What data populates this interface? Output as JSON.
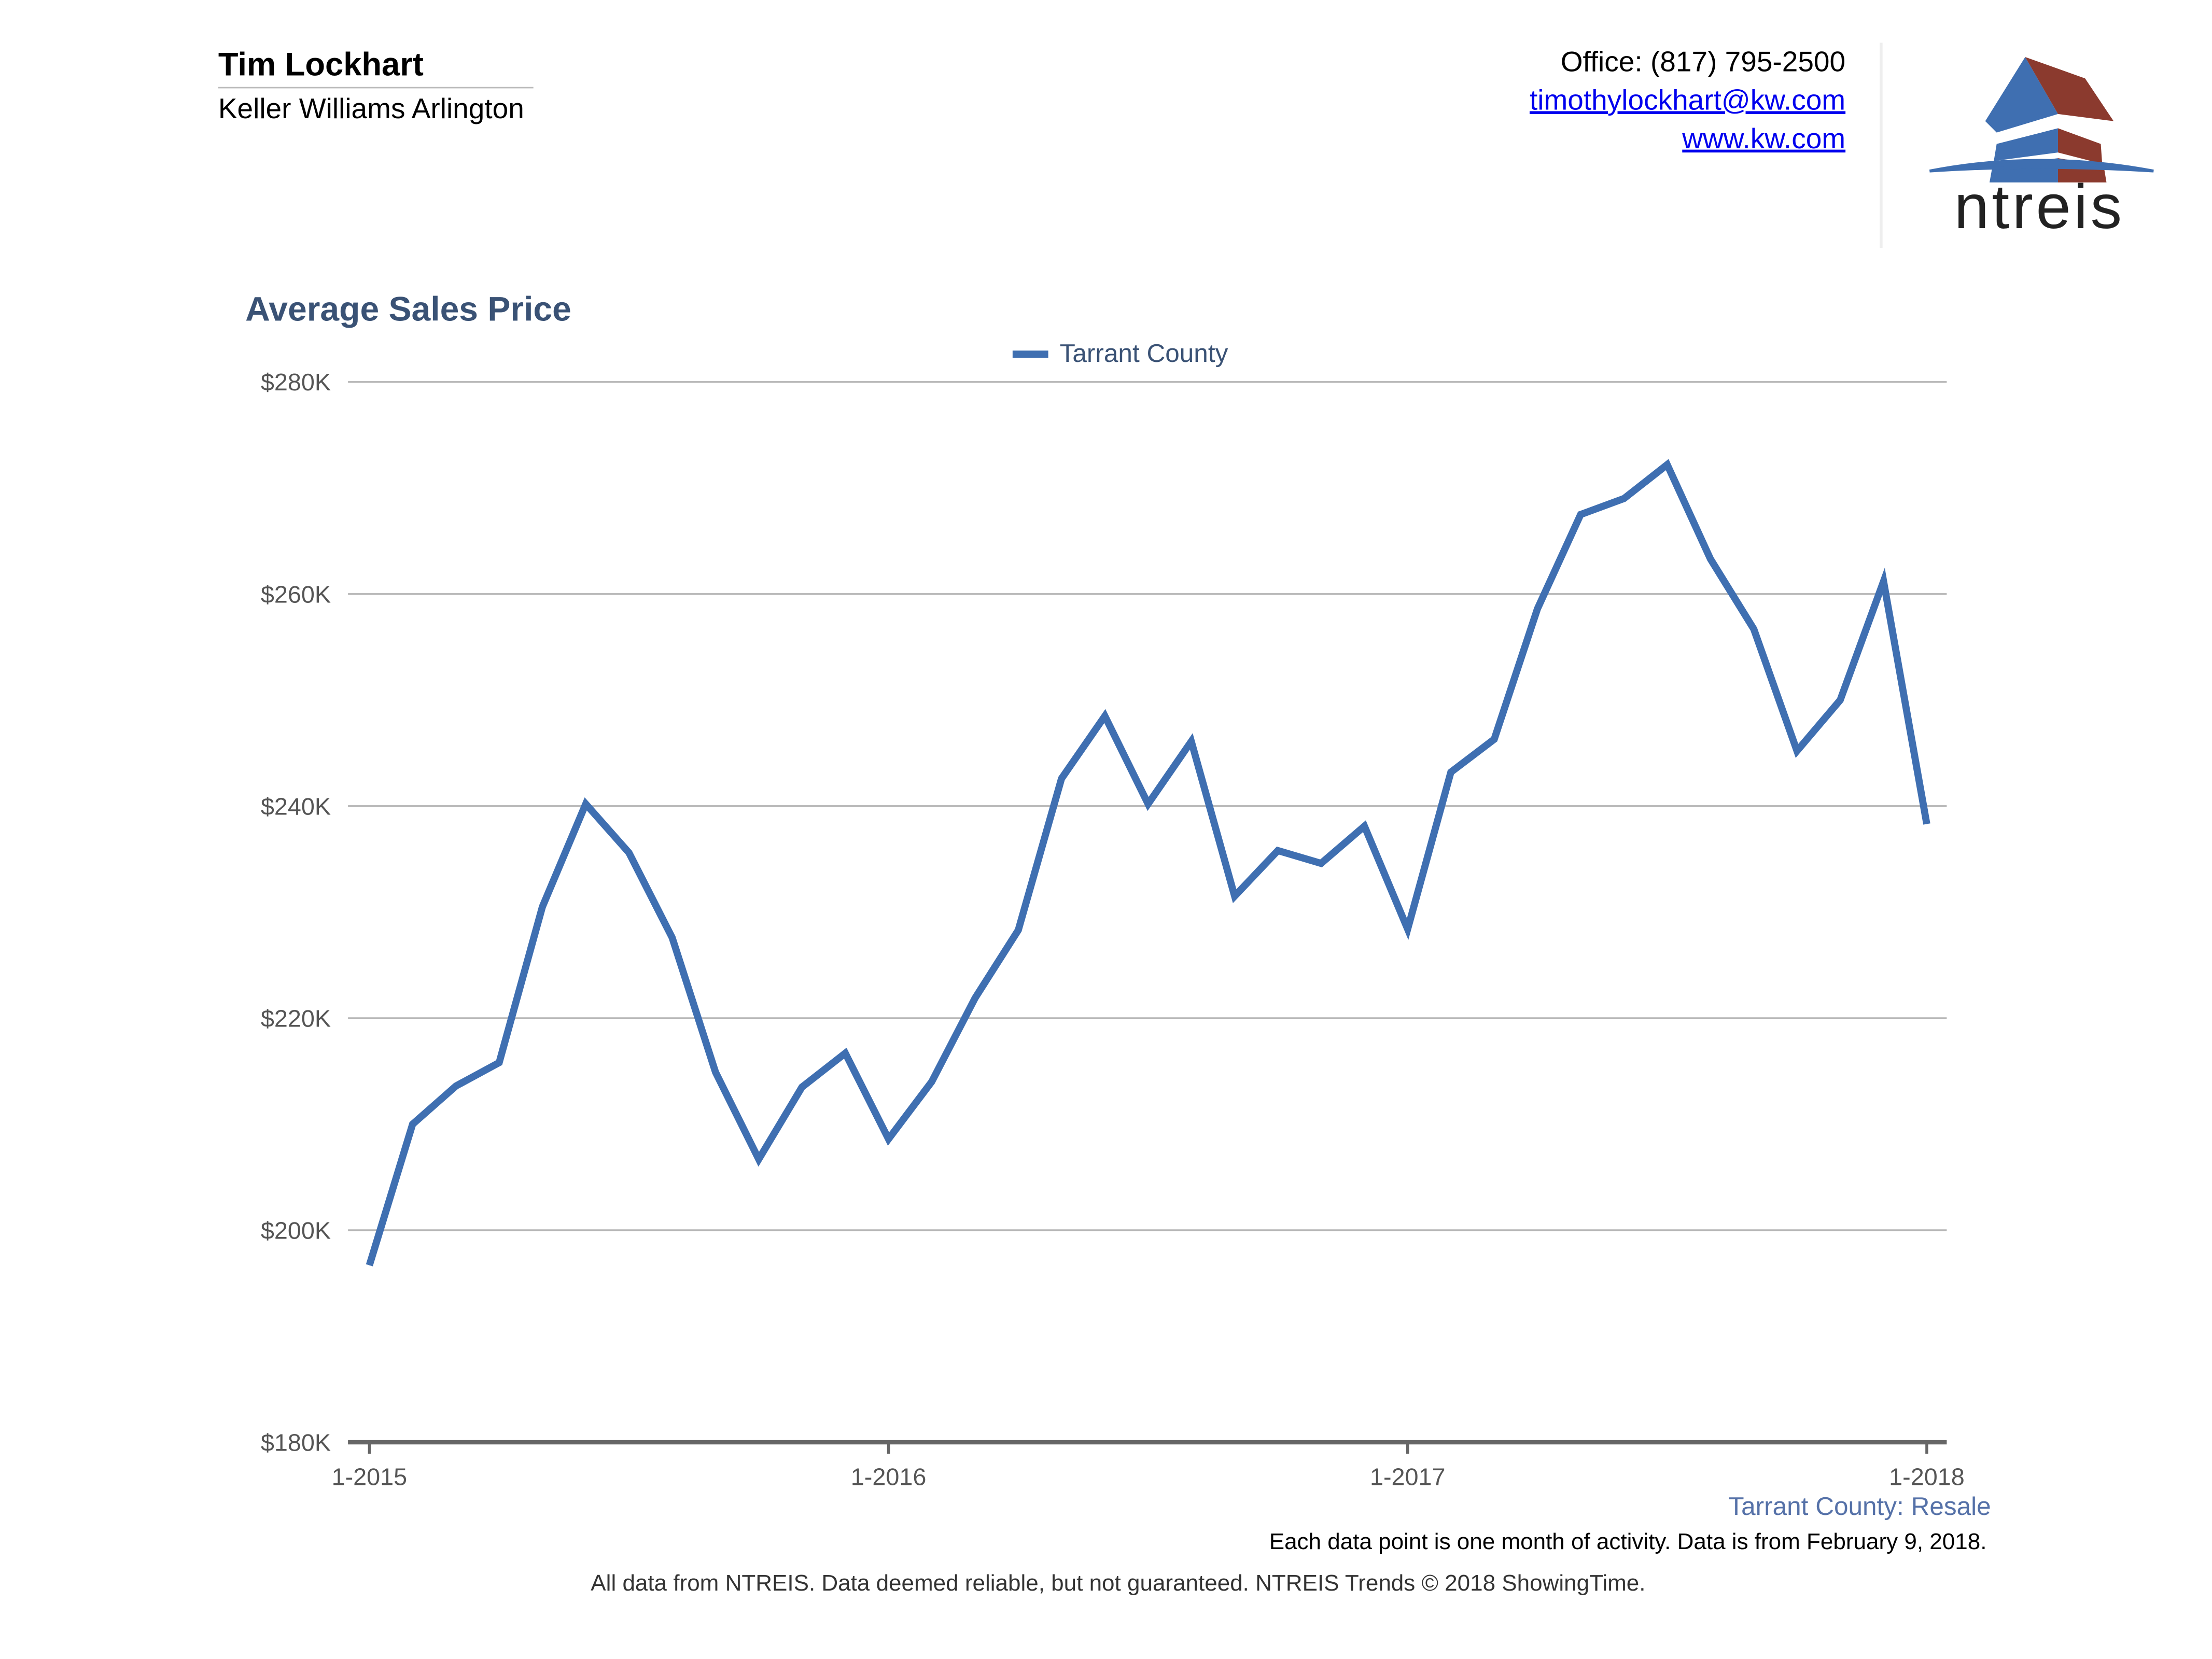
{
  "header": {
    "agent_name": "Tim Lockhart",
    "company": "Keller Williams Arlington",
    "office": "Office: (817) 795-2500",
    "email": "timothylockhart@kw.com",
    "website": "www.kw.com",
    "logo_text": "ntreis"
  },
  "colors": {
    "line": "#3f6fb1",
    "title": "#3a5275",
    "logo_blue": "#3f6fb1",
    "logo_red": "#8b3a2e"
  },
  "chart_data": {
    "type": "line",
    "title": "Average Sales Price",
    "xlabel": "",
    "ylabel": "",
    "ylim": [
      180000,
      280000
    ],
    "yticks": [
      180000,
      200000,
      220000,
      240000,
      260000,
      280000
    ],
    "ytick_labels": [
      "$180K",
      "$200K",
      "$220K",
      "$240K",
      "$260K",
      "$280K"
    ],
    "xtick_labels": [
      "1-2015",
      "1-2016",
      "1-2017",
      "1-2018"
    ],
    "xtick_index": [
      0,
      12,
      24,
      36
    ],
    "grid": true,
    "legend": "top-center",
    "x": [
      "1-2015",
      "2-2015",
      "3-2015",
      "4-2015",
      "5-2015",
      "6-2015",
      "7-2015",
      "8-2015",
      "9-2015",
      "10-2015",
      "11-2015",
      "12-2015",
      "1-2016",
      "2-2016",
      "3-2016",
      "4-2016",
      "5-2016",
      "6-2016",
      "7-2016",
      "8-2016",
      "9-2016",
      "10-2016",
      "11-2016",
      "12-2016",
      "1-2017",
      "2-2017",
      "3-2017",
      "4-2017",
      "5-2017",
      "6-2017",
      "7-2017",
      "8-2017",
      "9-2017",
      "10-2017",
      "11-2017",
      "12-2017",
      "1-2018"
    ],
    "series": [
      {
        "name": "Tarrant County",
        "values": [
          196700,
          210000,
          213600,
          215800,
          230500,
          240200,
          235600,
          227600,
          214900,
          206700,
          213500,
          216700,
          208600,
          214000,
          221900,
          228300,
          242600,
          248500,
          240200,
          246100,
          231500,
          235800,
          234600,
          238100,
          228400,
          243200,
          246300,
          258600,
          267500,
          269000,
          272200,
          263300,
          256700,
          245200,
          250000,
          261200,
          238300
        ]
      }
    ],
    "source_label": "Tarrant County: Resale",
    "note": "Each data point is one month of activity. Data is from February 9, 2018."
  },
  "footer": "All data from NTREIS. Data deemed reliable, but not guaranteed. NTREIS Trends © 2018 ShowingTime."
}
